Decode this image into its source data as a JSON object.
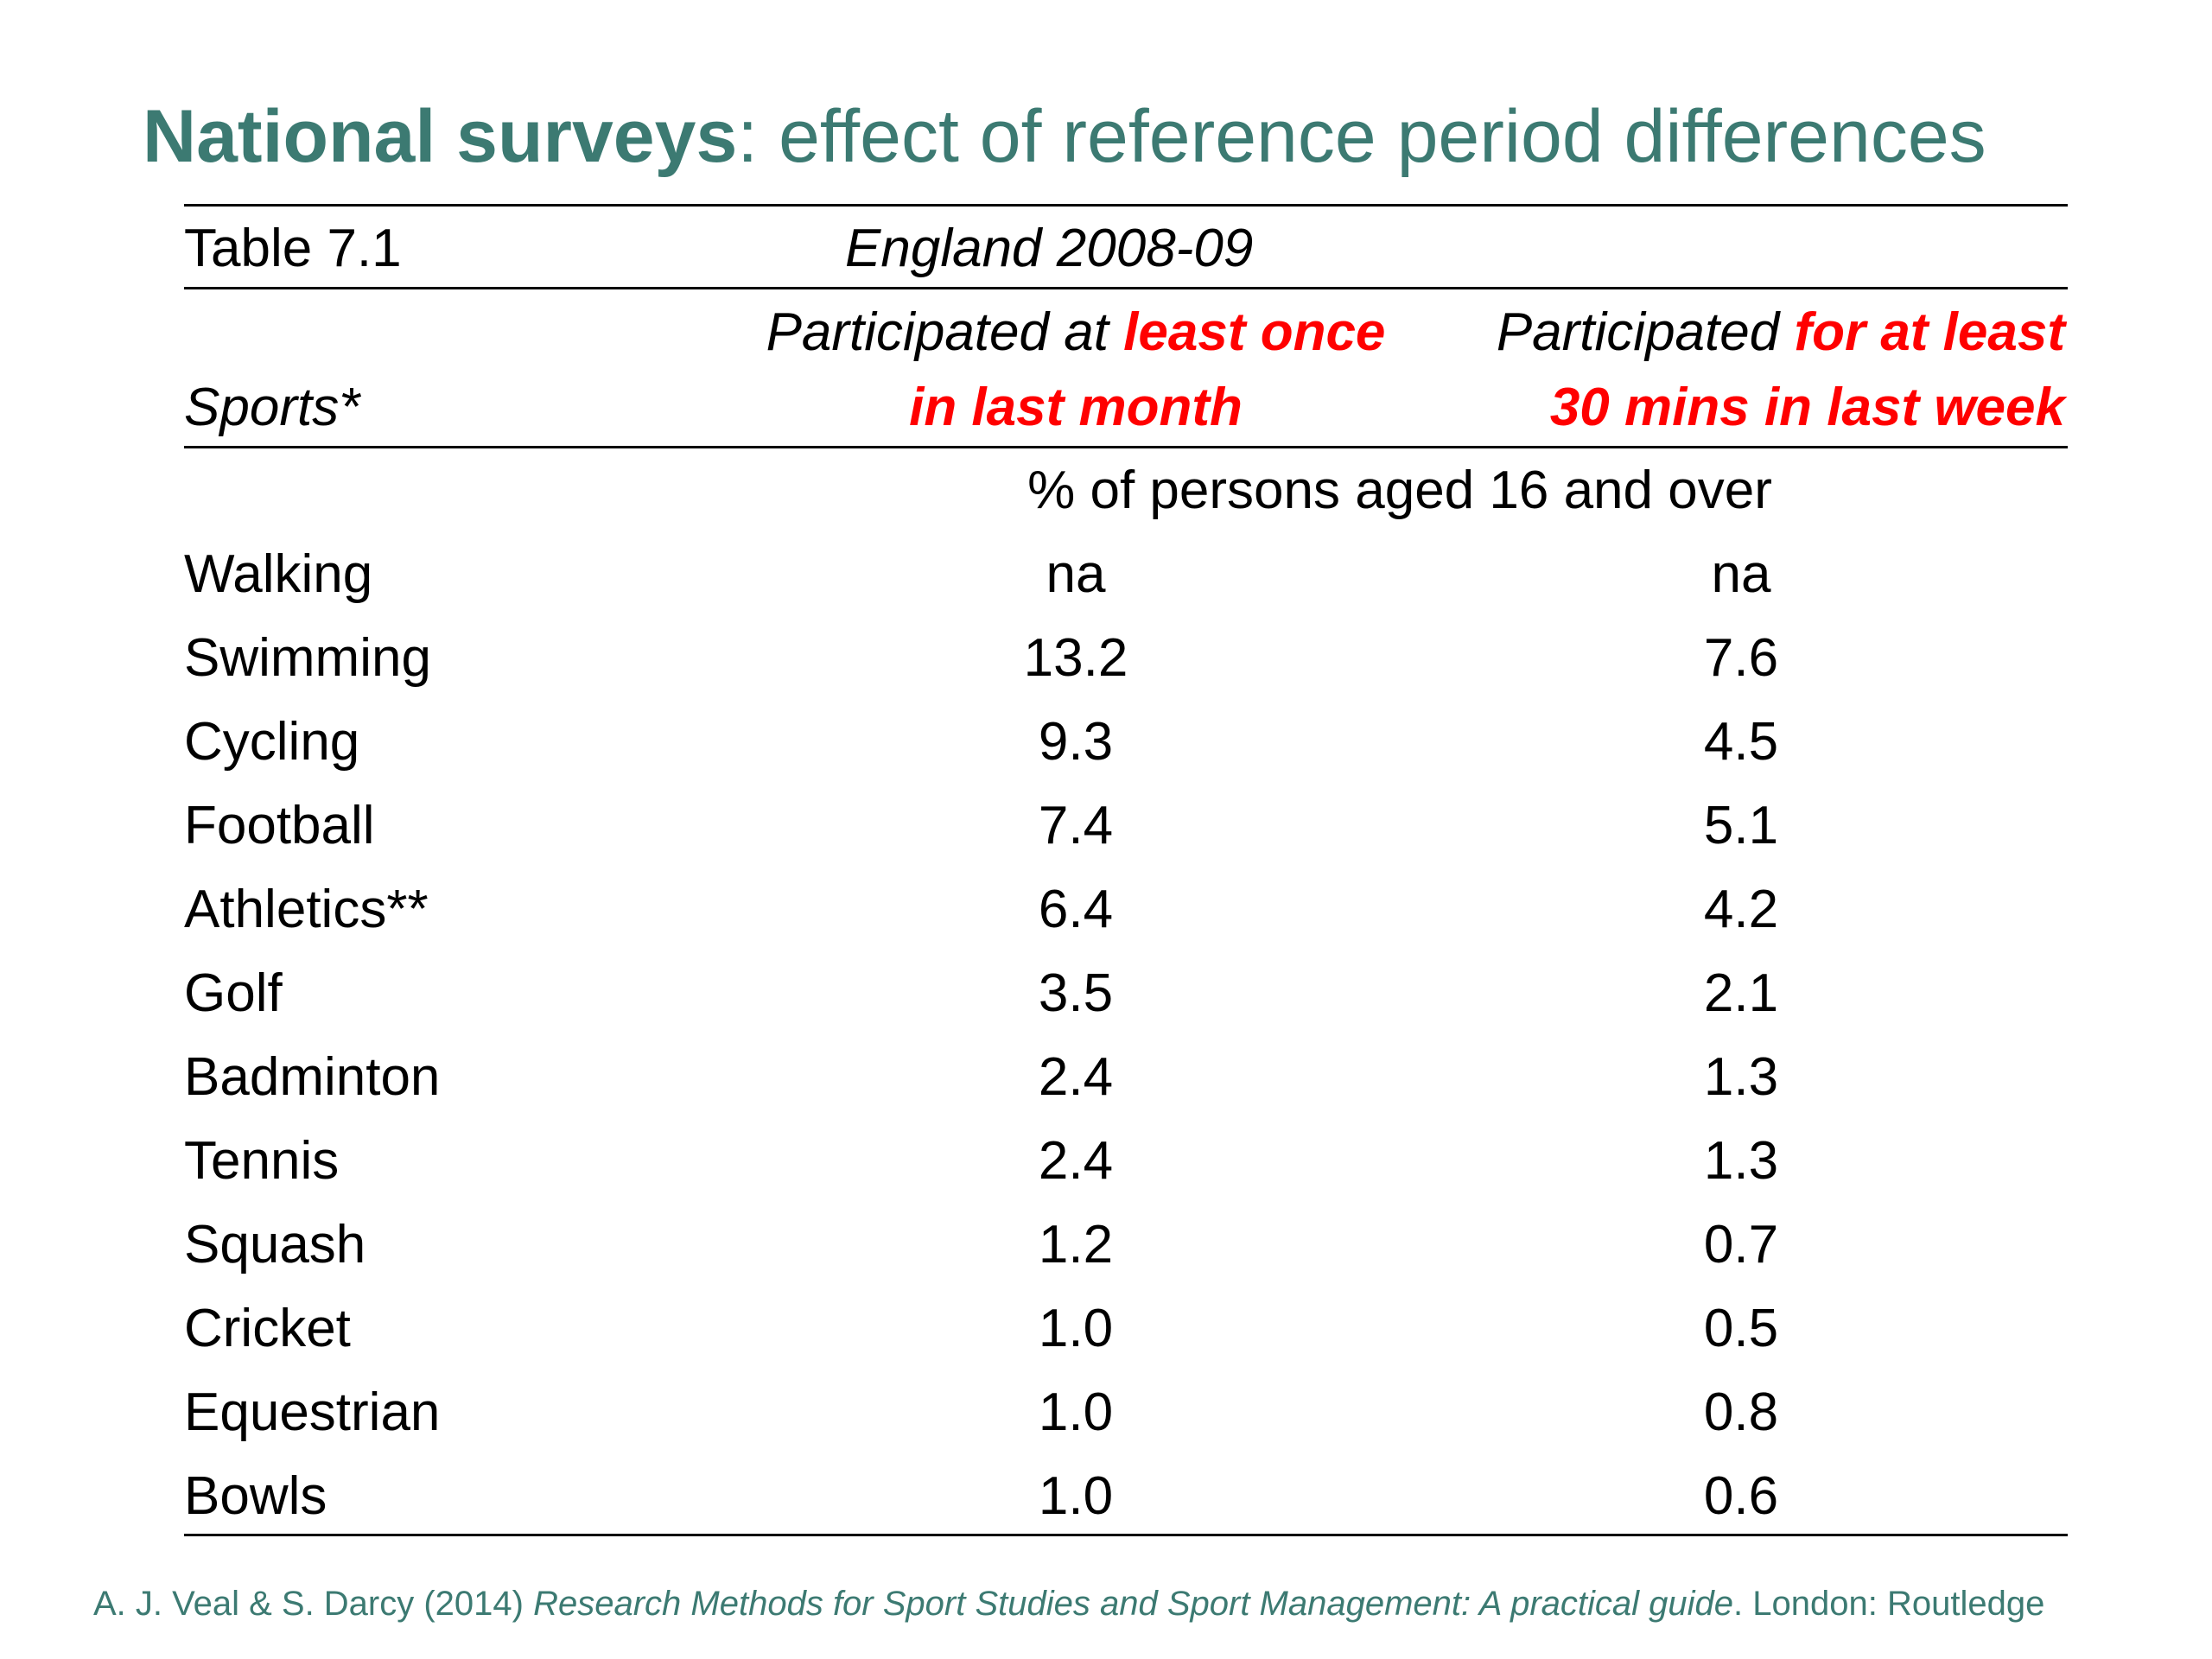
{
  "title": {
    "bold": "National surveys",
    "rest": ": effect of reference period differences"
  },
  "table": {
    "number": "Table 7.1",
    "region": "England 2008-09",
    "col_label": "Sports*",
    "col1": {
      "prefix": "Participated at ",
      "highlight_1": "least once",
      "highlight_2": "in last month"
    },
    "col2": {
      "prefix": "Participated ",
      "highlight_1": "for at least",
      "highlight_2": "30 mins in last week"
    },
    "units": "% of persons aged 16 and over",
    "rows": [
      {
        "sport": "Walking",
        "month": "na",
        "week": "na"
      },
      {
        "sport": "Swimming",
        "month": "13.2",
        "week": "7.6"
      },
      {
        "sport": "Cycling",
        "month": "9.3",
        "week": "4.5"
      },
      {
        "sport": "Football",
        "month": "7.4",
        "week": "5.1"
      },
      {
        "sport": "Athletics**",
        "month": "6.4",
        "week": "4.2"
      },
      {
        "sport": "Golf",
        "month": "3.5",
        "week": "2.1"
      },
      {
        "sport": "Badminton",
        "month": "2.4",
        "week": "1.3"
      },
      {
        "sport": "Tennis",
        "month": "2.4",
        "week": "1.3"
      },
      {
        "sport": "Squash",
        "month": "1.2",
        "week": "0.7"
      },
      {
        "sport": "Cricket",
        "month": "1.0",
        "week": "0.5"
      },
      {
        "sport": "Equestrian",
        "month": "1.0",
        "week": "0.8"
      },
      {
        "sport": "Bowls",
        "month": "1.0",
        "week": "0.6"
      }
    ]
  },
  "citation": {
    "authors": "A. J. Veal & S. Darcy (2014) ",
    "book": "Research Methods for Sport Studies and Sport Management: A practical guide",
    "publisher": ". London: Routledge"
  },
  "colors": {
    "title": "#3c7a72",
    "highlight": "#ff0000"
  }
}
